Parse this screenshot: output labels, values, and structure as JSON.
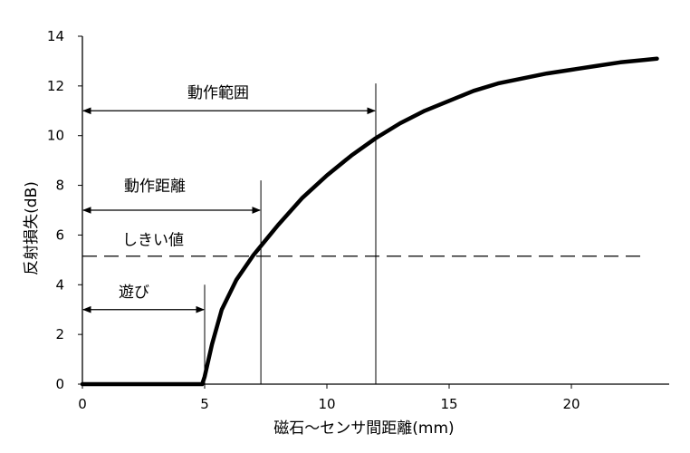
{
  "chart_data": {
    "type": "line",
    "xlabel": "磁石～センサ間距離(mm)",
    "ylabel": "反射損失(dB)",
    "xlim": [
      0,
      24
    ],
    "ylim": [
      0,
      14
    ],
    "xticks": [
      "0",
      "5",
      "10",
      "15",
      "20"
    ],
    "yticks": [
      "0",
      "2",
      "4",
      "6",
      "8",
      "10",
      "12",
      "14"
    ],
    "grid": false,
    "series": [
      {
        "x": [
          0,
          4.9,
          5.0,
          5.3,
          5.7,
          6.3,
          7.0,
          7.5,
          8.0,
          9.0,
          10.0,
          11.0,
          12.0,
          13.0,
          14.0,
          15.0,
          16.0,
          17.0,
          18.0,
          19.0,
          20.0,
          21.0,
          22.0,
          23.0,
          23.5
        ],
        "y": [
          0,
          0,
          0.3,
          1.6,
          3.0,
          4.2,
          5.2,
          5.8,
          6.4,
          7.5,
          8.4,
          9.2,
          9.9,
          10.5,
          11.0,
          11.4,
          11.8,
          12.1,
          12.3,
          12.5,
          12.65,
          12.8,
          12.95,
          13.05,
          13.1
        ],
        "color": "#000000"
      }
    ],
    "threshold": {
      "y": 5.15,
      "label": "しきい値"
    },
    "vlines": [
      {
        "x": 5.0
      },
      {
        "x": 7.3
      },
      {
        "x": 12.0
      }
    ],
    "annotations": [
      {
        "label": "遊び",
        "y": 3.0,
        "x_start": 0,
        "x_end": 5.0
      },
      {
        "label": "動作距離",
        "y": 7.0,
        "x_start": 0,
        "x_end": 7.3
      },
      {
        "label": "動作範囲",
        "y": 11.0,
        "x_start": 0,
        "x_end": 12.0
      }
    ]
  }
}
